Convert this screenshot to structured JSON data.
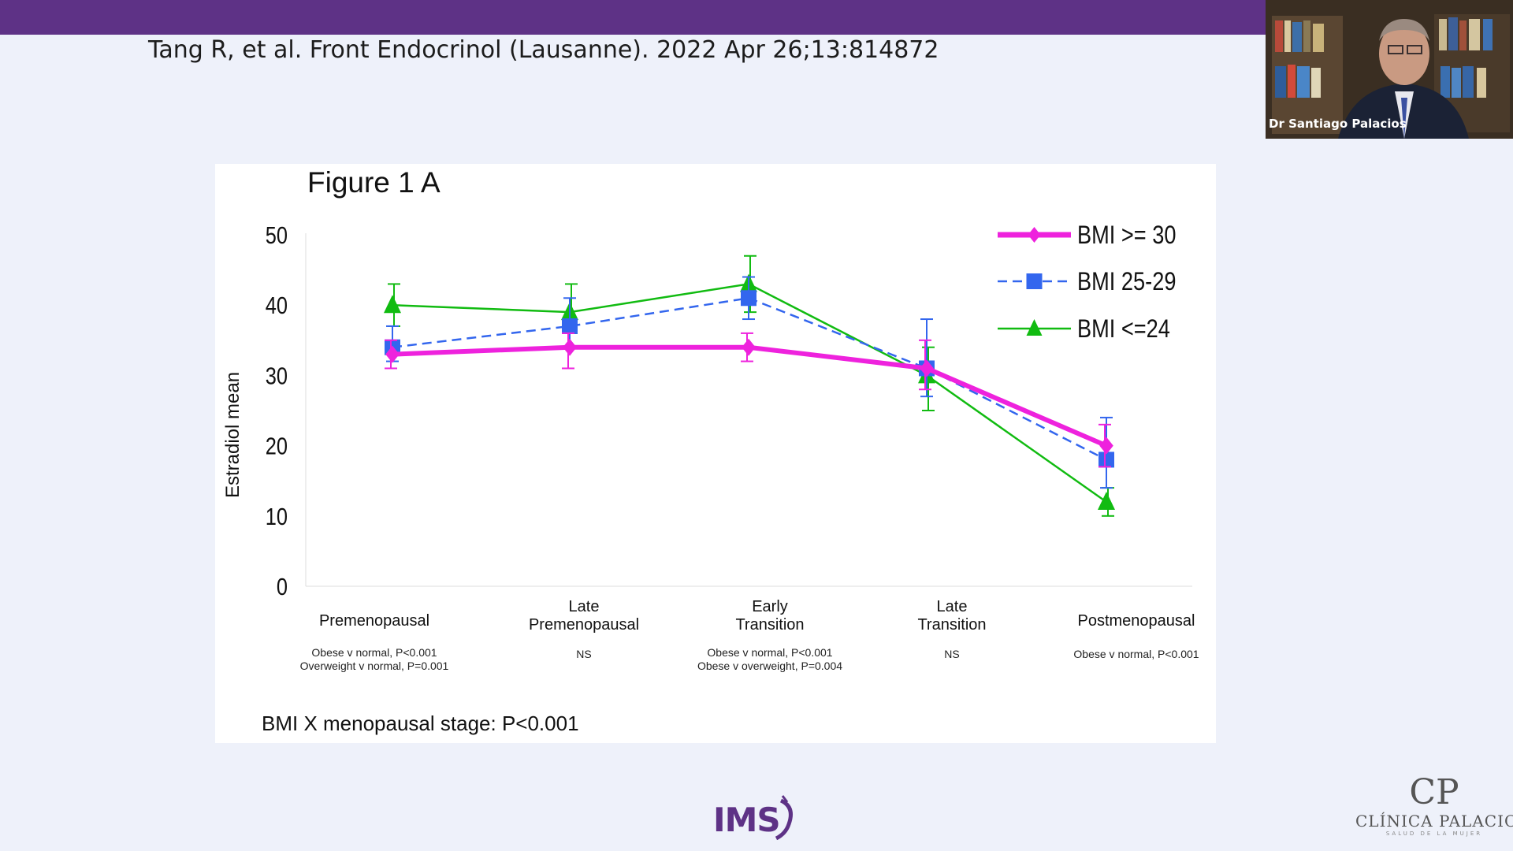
{
  "slide": {
    "citation": "Tang R, et al. Front Endocrinol (Lausanne). 2022 Apr 26;13:814872",
    "ims_logo": "IMS",
    "clinic_logo_mark": "CP",
    "clinic_logo_name": "CLÍNICA PALACIOS",
    "clinic_logo_tagline": "SALUD DE LA MUJER"
  },
  "video": {
    "speaker_name": "Dr Santiago Palacios"
  },
  "colors": {
    "top_bar": "#5e3286",
    "bmi_30": "#ee22dd",
    "bmi_25_29": "#3366ee",
    "bmi_24": "#11bb11"
  },
  "chart_data": {
    "type": "line",
    "title": "Figure 1 A",
    "ylabel": "Estradiol  mean",
    "xlabel": "",
    "ylim": [
      0,
      50
    ],
    "yticks": [
      0,
      10,
      20,
      30,
      40,
      50
    ],
    "grid": false,
    "legend_position": "top-right",
    "categories": [
      [
        "Premenopausal"
      ],
      [
        "Late",
        "Premenopausal"
      ],
      [
        "Early",
        "Transition"
      ],
      [
        "Late",
        "Transition"
      ],
      [
        "Postmenopausal"
      ]
    ],
    "comparisons": [
      [
        "Obese v normal, P<0.001",
        "Overweight v normal, P=0.001"
      ],
      [
        "NS"
      ],
      [
        "Obese v normal, P<0.001",
        "Obese v overweight, P=0.004"
      ],
      [
        "NS"
      ],
      [
        "Obese v normal, P<0.001"
      ]
    ],
    "series": [
      {
        "name": "BMI >= 30",
        "marker": "diamond",
        "line": "solid-thick",
        "color": "#ee22dd",
        "values": [
          33,
          34,
          34,
          31,
          20
        ],
        "error": [
          [
            31,
            35
          ],
          [
            31,
            36
          ],
          [
            32,
            36
          ],
          [
            28,
            35
          ],
          [
            17,
            23
          ]
        ]
      },
      {
        "name": "BMI 25-29",
        "marker": "square",
        "line": "dashed",
        "color": "#3366ee",
        "values": [
          34,
          37,
          41,
          31,
          18
        ],
        "error": [
          [
            32,
            37
          ],
          [
            34,
            41
          ],
          [
            38,
            44
          ],
          [
            27,
            38
          ],
          [
            14,
            24
          ]
        ]
      },
      {
        "name": "BMI <=24",
        "marker": "triangle",
        "line": "solid",
        "color": "#11bb11",
        "values": [
          40,
          39,
          43,
          30,
          12
        ],
        "error": [
          [
            37,
            43
          ],
          [
            36,
            43
          ],
          [
            39,
            47
          ],
          [
            25,
            34
          ],
          [
            10,
            14
          ]
        ]
      }
    ],
    "footer": "BMI X menopausal stage:  P<0.001"
  }
}
